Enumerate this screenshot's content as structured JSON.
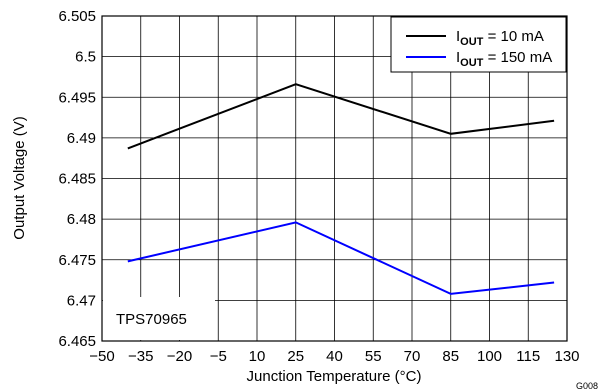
{
  "chart_data": {
    "type": "line",
    "xlabel": "Junction Temperature (°C)",
    "ylabel": "Output Voltage (V)",
    "xlim": [
      -50,
      130
    ],
    "ylim": [
      6.465,
      6.505
    ],
    "x_ticks": [
      "−50",
      "−35",
      "−20",
      "−5",
      "10",
      "25",
      "40",
      "55",
      "70",
      "85",
      "100",
      "115",
      "130"
    ],
    "y_ticks": [
      "6.465",
      "6.47",
      "6.475",
      "6.48",
      "6.485",
      "6.49",
      "6.495",
      "6.5",
      "6.505"
    ],
    "grid": true,
    "legend_position": "top-right",
    "series": [
      {
        "name": "I_OUT = 10 mA",
        "legend_main": "I",
        "legend_sub": "OUT",
        "legend_rest": " = 10 mA",
        "color": "#000000",
        "x": [
          -40,
          25,
          85,
          125
        ],
        "y": [
          6.4887,
          6.4966,
          6.4905,
          6.4921
        ]
      },
      {
        "name": "I_OUT = 150 mA",
        "legend_main": "I",
        "legend_sub": "OUT",
        "legend_rest": " = 150 mA",
        "color": "#0000ff",
        "x": [
          -40,
          25,
          85,
          125
        ],
        "y": [
          6.4748,
          6.4796,
          6.4708,
          6.4722
        ]
      }
    ],
    "annotation": "TPS70965",
    "figure_code": "G008"
  }
}
